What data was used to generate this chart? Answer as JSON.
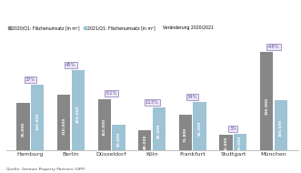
{
  "cities": [
    "Hamburg",
    "Berlin",
    "Düsseldorf",
    "Köln",
    "Frankfurt",
    "Stuttgart",
    "München"
  ],
  "values_2020": [
    95000,
    110000,
    102500,
    40000,
    71800,
    32000,
    195000
  ],
  "values_2021": [
    130000,
    160000,
    50600,
    85000,
    96200,
    33000,
    100500
  ],
  "changes": [
    "37%",
    "45%",
    "-51%",
    "113%",
    "34%",
    "3%",
    "-48%"
  ],
  "labels_2020": [
    "95.000",
    "110.000",
    "102.500",
    "40.000",
    "71.800",
    "32.000",
    "195.000"
  ],
  "labels_2021": [
    "130.000",
    "160.000",
    "50.600",
    "85.000",
    "96.200",
    "33.000",
    "100.500"
  ],
  "color_2020": "#878787",
  "color_2021": "#9dc3d4",
  "legend_label_2020": "2020/Q1: Flächenumsatz [in m²]",
  "legend_label_2021": "2021/Q1: Flächenumsatz [in m²]",
  "legend_label_change": "Veränderung 2020/2021",
  "source": "Quelle: German Property Partners (GPP)",
  "badge_facecolor": "#ede8f5",
  "badge_edgecolor": "#9b8abf",
  "badge_textcolor": "#6b4fa0",
  "ymax": 230000,
  "bar_width": 0.32,
  "figsize": [
    3.31,
    1.9
  ],
  "dpi": 100
}
